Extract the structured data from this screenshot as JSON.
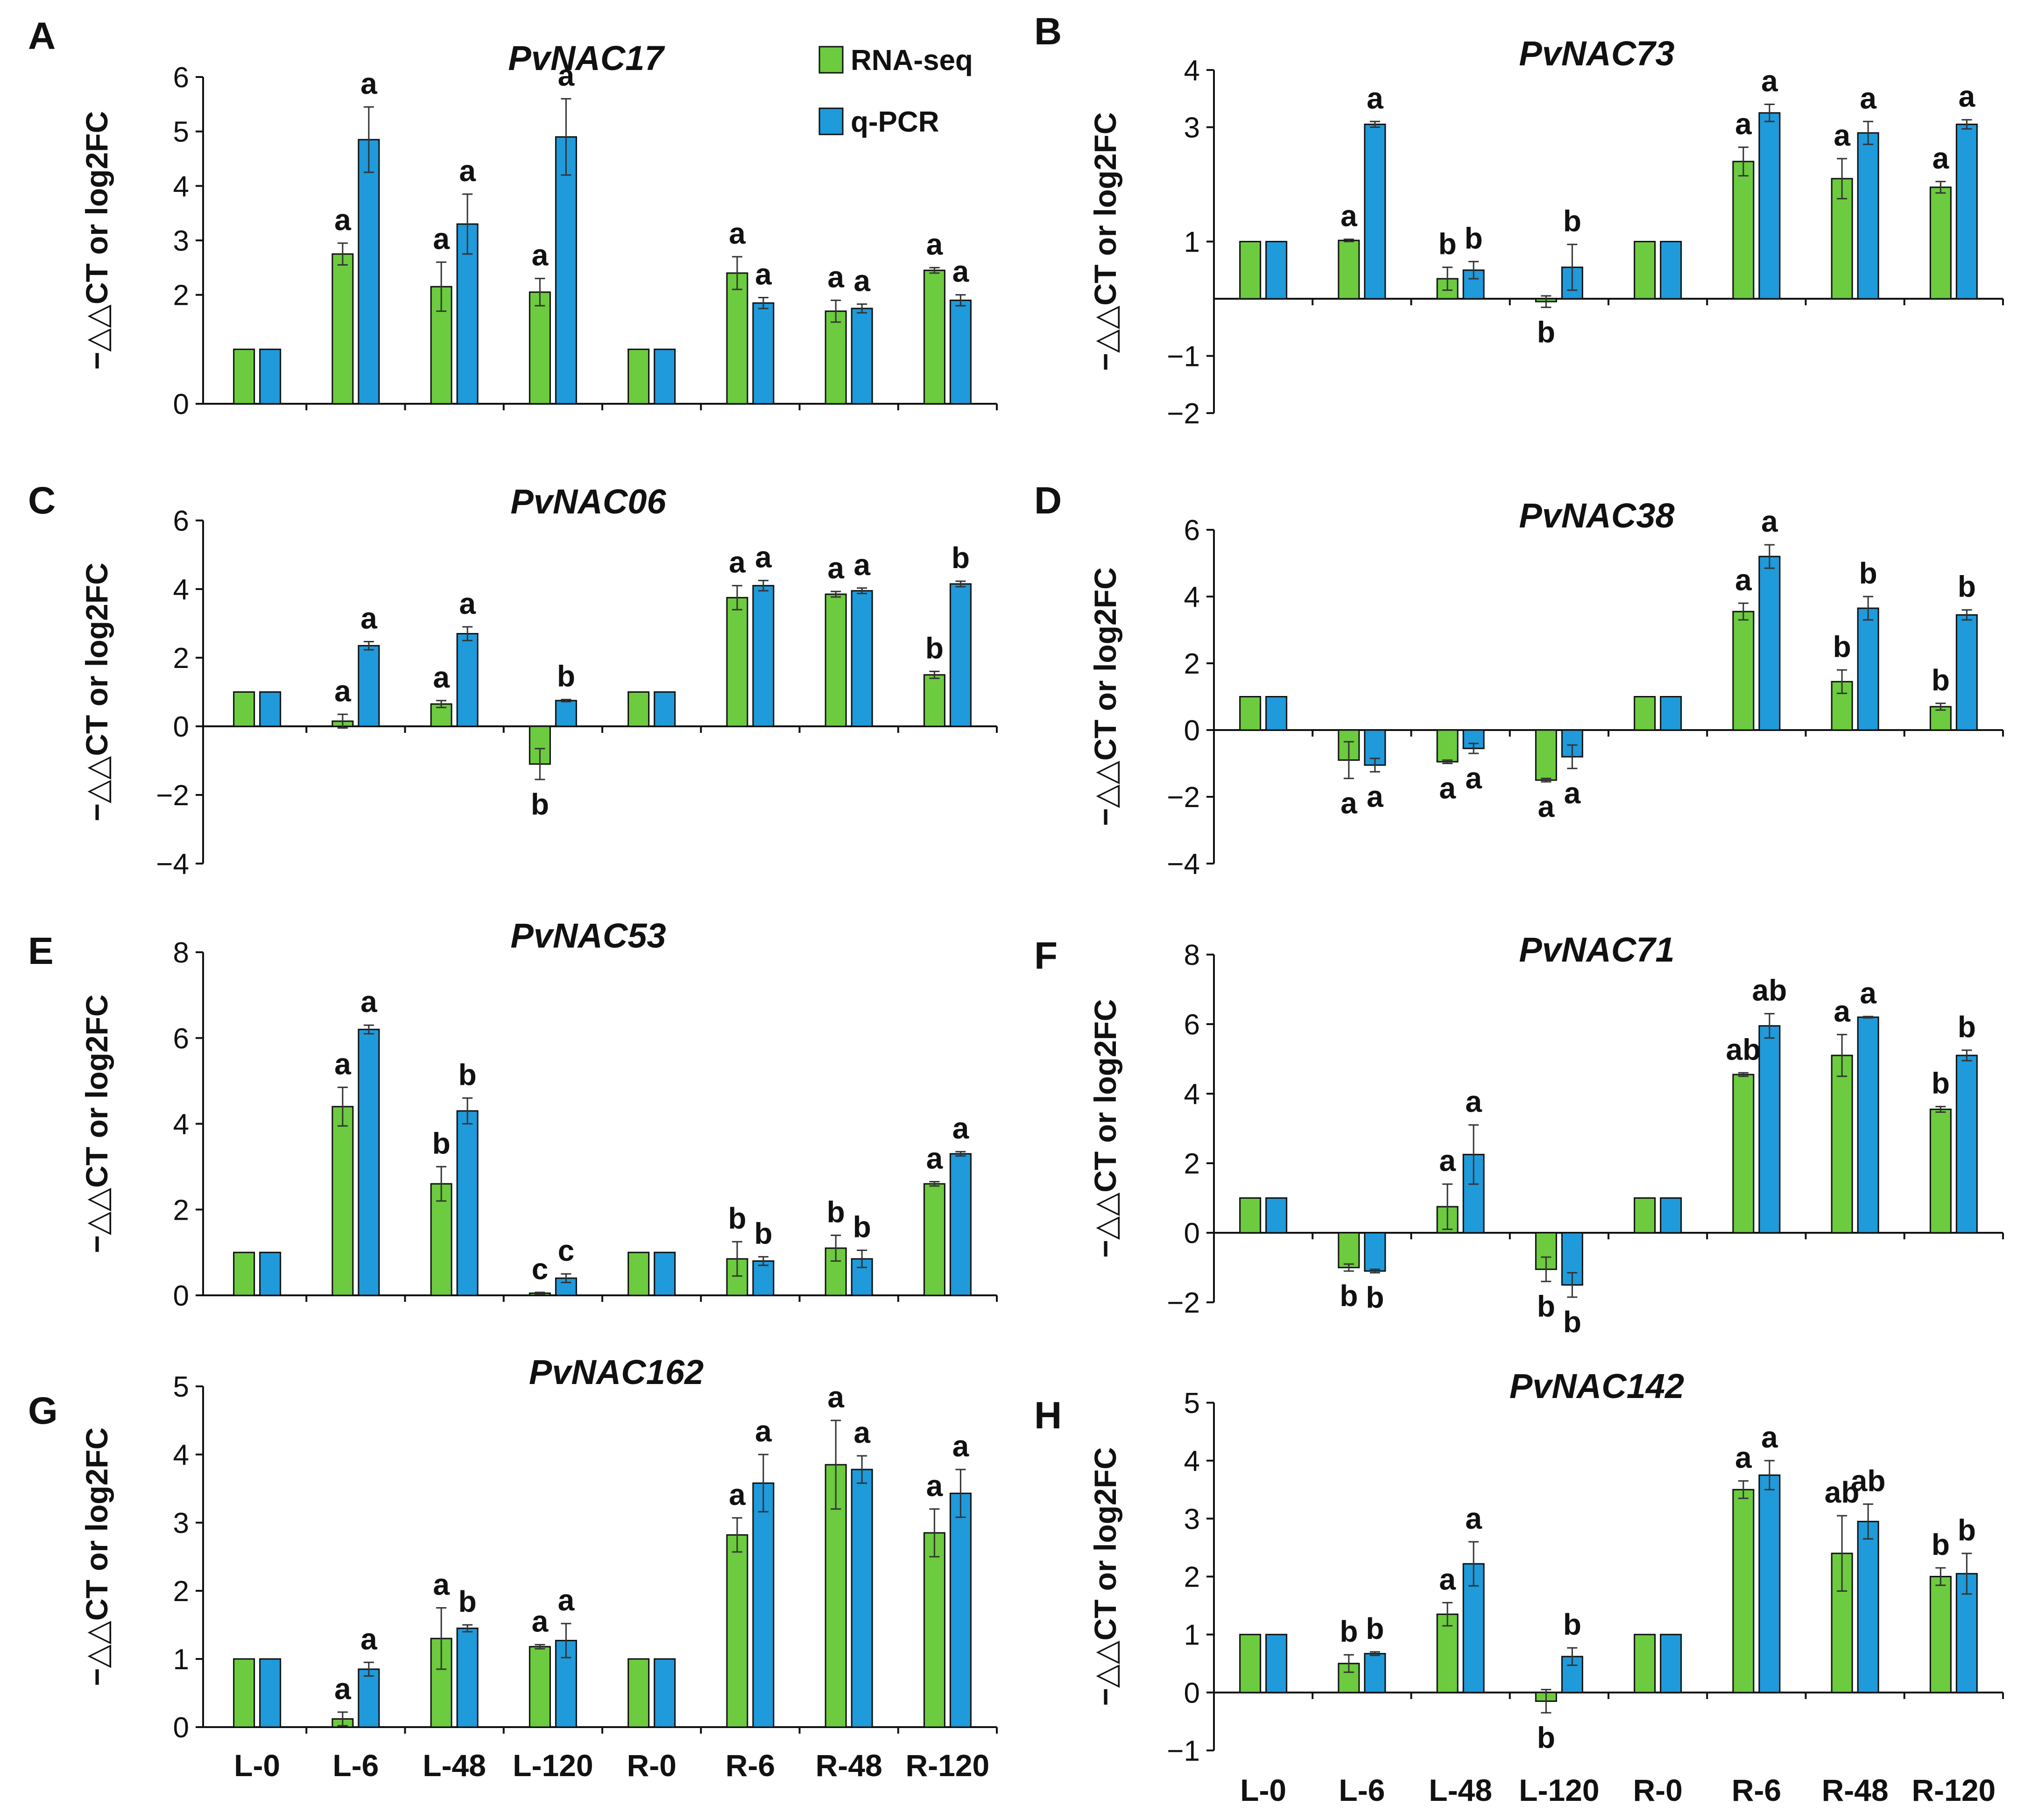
{
  "colors": {
    "rna": "#6CCB3E",
    "qpcr": "#1F9ADB",
    "axis": "#111111",
    "error": "#333333"
  },
  "legend": [
    "RNA-seq",
    "q-PCR"
  ],
  "chart_data": [
    {
      "type": "bar",
      "panel": "A",
      "title": "PvNAC17",
      "ylabel": "−△△CT or log2FC",
      "categories": [
        "L-0",
        "L-6",
        "L-48",
        "L-120",
        "R-0",
        "R-6",
        "R-48",
        "R-120"
      ],
      "ylim": [
        0,
        6
      ],
      "yticks": [
        "0",
        "2",
        "3",
        "4",
        "5",
        "6"
      ],
      "series": [
        {
          "name": "RNA-seq",
          "values": [
            1,
            2.75,
            2.15,
            2.05,
            1,
            2.4,
            1.7,
            2.45
          ],
          "errors": [
            0,
            0.2,
            0.45,
            0.25,
            0,
            0.3,
            0.2,
            0.05
          ],
          "letters": [
            "",
            "a",
            "a",
            "a",
            "",
            "a",
            "a",
            "a"
          ]
        },
        {
          "name": "q-PCR",
          "values": [
            1,
            4.85,
            3.3,
            4.9,
            1,
            1.85,
            1.75,
            1.9
          ],
          "errors": [
            0,
            0.6,
            0.55,
            0.7,
            0,
            0.1,
            0.08,
            0.1
          ],
          "letters": [
            "",
            "a",
            "a",
            "a",
            "",
            "a",
            "a",
            "a"
          ]
        }
      ]
    },
    {
      "type": "bar",
      "panel": "B",
      "title": "PvNAC73",
      "ylabel": "−△△CT or log2FC",
      "categories": [
        "L-0",
        "L-6",
        "L-48",
        "L-120",
        "R-0",
        "R-6",
        "R-48",
        "R-120"
      ],
      "ylim": [
        -2,
        4
      ],
      "yticks": [
        "−2",
        "−1",
        "1",
        "3",
        "4"
      ],
      "series": [
        {
          "name": "RNA-seq",
          "values": [
            1,
            1.02,
            0.35,
            -0.05,
            1,
            2.4,
            2.1,
            1.95
          ],
          "errors": [
            0,
            0.02,
            0.2,
            0.1,
            0,
            0.25,
            0.35,
            0.1
          ],
          "letters": [
            "",
            "a",
            "b",
            "b",
            "",
            "a",
            "a",
            "a"
          ]
        },
        {
          "name": "q-PCR",
          "values": [
            1,
            3.05,
            0.5,
            0.55,
            1,
            3.25,
            2.9,
            3.05
          ],
          "errors": [
            0,
            0.05,
            0.15,
            0.4,
            0,
            0.15,
            0.2,
            0.08
          ],
          "letters": [
            "",
            "a",
            "b",
            "b",
            "",
            "a",
            "a",
            "a"
          ]
        }
      ]
    },
    {
      "type": "bar",
      "panel": "C",
      "title": "PvNAC06",
      "ylabel": "−△△CT or log2FC",
      "categories": [
        "L-0",
        "L-6",
        "L-48",
        "L-120",
        "R-0",
        "R-6",
        "R-48",
        "R-120"
      ],
      "ylim": [
        -4,
        6
      ],
      "yticks": [
        "−4",
        "−2",
        "0",
        "2",
        "4",
        "6"
      ],
      "series": [
        {
          "name": "RNA-seq",
          "values": [
            1,
            0.15,
            0.65,
            -1.1,
            1,
            3.75,
            3.85,
            1.5
          ],
          "errors": [
            0,
            0.2,
            0.1,
            0.45,
            0,
            0.35,
            0.08,
            0.1
          ],
          "letters": [
            "",
            "a",
            "a",
            "b",
            "",
            "a",
            "a",
            "b"
          ]
        },
        {
          "name": "q-PCR",
          "values": [
            1,
            2.35,
            2.7,
            0.75,
            1,
            4.1,
            3.95,
            4.15
          ],
          "errors": [
            0,
            0.12,
            0.2,
            0.03,
            0,
            0.15,
            0.08,
            0.08
          ],
          "letters": [
            "",
            "a",
            "a",
            "b",
            "",
            "a",
            "a",
            "b"
          ]
        }
      ]
    },
    {
      "type": "bar",
      "panel": "D",
      "title": "PvNAC38",
      "ylabel": "−△△CT or log2FC",
      "categories": [
        "L-0",
        "L-6",
        "L-48",
        "L-120",
        "R-0",
        "R-6",
        "R-48",
        "R-120"
      ],
      "ylim": [
        -4,
        6
      ],
      "yticks": [
        "−4",
        "−2",
        "0",
        "2",
        "4",
        "6"
      ],
      "series": [
        {
          "name": "RNA-seq",
          "values": [
            1,
            -0.9,
            -0.95,
            -1.5,
            1,
            3.55,
            1.45,
            0.7
          ],
          "errors": [
            0,
            0.55,
            0.05,
            0.05,
            0,
            0.25,
            0.35,
            0.1
          ],
          "letters": [
            "",
            "a",
            "a",
            "a",
            "",
            "a",
            "b",
            "b"
          ]
        },
        {
          "name": "q-PCR",
          "values": [
            1,
            -1.05,
            -0.55,
            -0.8,
            1,
            5.2,
            3.65,
            3.45
          ],
          "errors": [
            0,
            0.2,
            0.15,
            0.35,
            0,
            0.35,
            0.35,
            0.15
          ],
          "letters": [
            "",
            "a",
            "a",
            "a",
            "",
            "a",
            "b",
            "b"
          ]
        }
      ]
    },
    {
      "type": "bar",
      "panel": "E",
      "title": "PvNAC53",
      "ylabel": "−△△CT or log2FC",
      "categories": [
        "L-0",
        "L-6",
        "L-48",
        "L-120",
        "R-0",
        "R-6",
        "R-48",
        "R-120"
      ],
      "ylim": [
        0,
        8
      ],
      "yticks": [
        "0",
        "2",
        "4",
        "6",
        "8"
      ],
      "series": [
        {
          "name": "RNA-seq",
          "values": [
            1,
            4.4,
            2.6,
            0.05,
            1,
            0.85,
            1.1,
            2.6
          ],
          "errors": [
            0,
            0.45,
            0.4,
            0.02,
            0,
            0.4,
            0.3,
            0.05
          ],
          "letters": [
            "",
            "a",
            "b",
            "c",
            "",
            "b",
            "b",
            "a"
          ]
        },
        {
          "name": "q-PCR",
          "values": [
            1,
            6.2,
            4.3,
            0.4,
            1,
            0.8,
            0.85,
            3.3
          ],
          "errors": [
            0,
            0.1,
            0.3,
            0.1,
            0,
            0.1,
            0.2,
            0.05
          ],
          "letters": [
            "",
            "a",
            "b",
            "c",
            "",
            "b",
            "b",
            "a"
          ]
        }
      ]
    },
    {
      "type": "bar",
      "panel": "F",
      "title": "PvNAC71",
      "ylabel": "−△△CT or log2FC",
      "categories": [
        "L-0",
        "L-6",
        "L-48",
        "L-120",
        "R-0",
        "R-6",
        "R-48",
        "R-120"
      ],
      "ylim": [
        -2,
        8
      ],
      "yticks": [
        "−2",
        "0",
        "2",
        "4",
        "6",
        "8"
      ],
      "series": [
        {
          "name": "RNA-seq",
          "values": [
            1,
            -1,
            0.75,
            -1.05,
            1,
            4.55,
            5.1,
            3.55
          ],
          "errors": [
            0,
            0.1,
            0.65,
            0.35,
            0,
            0.05,
            0.6,
            0.08
          ],
          "letters": [
            "",
            "b",
            "a",
            "b",
            "",
            "ab",
            "a",
            "b"
          ]
        },
        {
          "name": "q-PCR",
          "values": [
            1,
            -1.1,
            2.25,
            -1.5,
            1,
            5.95,
            6.2,
            5.1
          ],
          "errors": [
            0,
            0.05,
            0.85,
            0.35,
            0,
            0.35,
            0.02,
            0.15
          ],
          "letters": [
            "",
            "b",
            "a",
            "b",
            "",
            "ab",
            "a",
            "b"
          ]
        }
      ]
    },
    {
      "type": "bar",
      "panel": "G",
      "title": "PvNAC162",
      "ylabel": "−△△CT or log2FC",
      "categories": [
        "L-0",
        "L-6",
        "L-48",
        "L-120",
        "R-0",
        "R-6",
        "R-48",
        "R-120"
      ],
      "ylim": [
        0,
        5
      ],
      "yticks": [
        "0",
        "1",
        "2",
        "3",
        "4",
        "5"
      ],
      "series": [
        {
          "name": "RNA-seq",
          "values": [
            1,
            0.12,
            1.3,
            1.18,
            1,
            2.82,
            3.85,
            2.85
          ],
          "errors": [
            0,
            0.1,
            0.45,
            0.03,
            0,
            0.25,
            0.65,
            0.35
          ],
          "letters": [
            "",
            "a",
            "a",
            "a",
            "",
            "a",
            "a",
            "a"
          ]
        },
        {
          "name": "q-PCR",
          "values": [
            1,
            0.85,
            1.45,
            1.27,
            1,
            3.58,
            3.78,
            3.43
          ],
          "errors": [
            0,
            0.1,
            0.05,
            0.25,
            0,
            0.42,
            0.2,
            0.35
          ],
          "letters": [
            "",
            "a",
            "b",
            "a",
            "",
            "a",
            "a",
            "a"
          ]
        }
      ]
    },
    {
      "type": "bar",
      "panel": "H",
      "title": "PvNAC142",
      "ylabel": "−△△CT or log2FC",
      "categories": [
        "L-0",
        "L-6",
        "L-48",
        "L-120",
        "R-0",
        "R-6",
        "R-48",
        "R-120"
      ],
      "ylim": [
        -1,
        5
      ],
      "yticks": [
        "−1",
        "0",
        "1",
        "2",
        "3",
        "4",
        "5"
      ],
      "series": [
        {
          "name": "RNA-seq",
          "values": [
            1,
            0.5,
            1.35,
            -0.15,
            1,
            3.5,
            2.4,
            2
          ],
          "errors": [
            0,
            0.15,
            0.2,
            0.2,
            0,
            0.15,
            0.65,
            0.15
          ],
          "letters": [
            "",
            "b",
            "a",
            "b",
            "",
            "a",
            "ab",
            "b"
          ]
        },
        {
          "name": "q-PCR",
          "values": [
            1,
            0.67,
            2.22,
            0.62,
            1,
            3.75,
            2.95,
            2.05
          ],
          "errors": [
            0,
            0.03,
            0.38,
            0.15,
            0,
            0.25,
            0.3,
            0.35
          ],
          "letters": [
            "",
            "b",
            "a",
            "b",
            "",
            "a",
            "ab",
            "b"
          ]
        }
      ]
    }
  ]
}
